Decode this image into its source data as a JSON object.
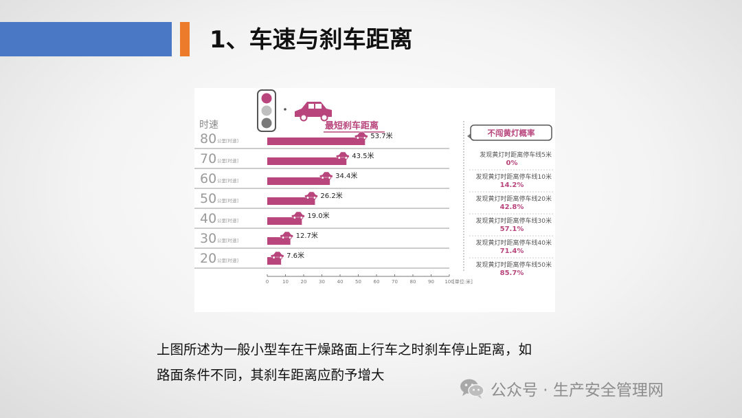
{
  "slide": {
    "title": "1、车速与刹车距离",
    "caption_line1": "上图所述为一般小型车在干燥路面上行车之时刹车停止距离，如",
    "caption_line2": "路面条件不同，其刹车距离应酌予增大"
  },
  "watermark": {
    "text": "公众号 · 生产安全管理网"
  },
  "chart_data": {
    "type": "bar",
    "title": "最短刹车距离",
    "ylabel": "时速",
    "xlabel": "[单位:米]",
    "row_unit": "公里[时速]",
    "categories": [
      "80",
      "70",
      "60",
      "50",
      "40",
      "30",
      "20"
    ],
    "values": [
      53.7,
      43.5,
      34.4,
      26.2,
      19.0,
      12.7,
      7.6
    ],
    "value_labels": [
      "53.7米",
      "43.5米",
      "34.4米",
      "26.2米",
      "19.0米",
      "12.7米",
      "7.6米"
    ],
    "xlim": [
      0,
      100
    ],
    "x_ticks": [
      0,
      10,
      20,
      30,
      40,
      50,
      60,
      70,
      80,
      90,
      100
    ],
    "bar_color": "#b8457c",
    "side_panel": {
      "title": "不闯黄灯概率",
      "items": [
        {
          "label": "发现黄灯时距离停车线5米",
          "value": "0%"
        },
        {
          "label": "发现黄灯时距离停车线10米",
          "value": "14.2%"
        },
        {
          "label": "发现黄灯时距离停车线20米",
          "value": "42.8%"
        },
        {
          "label": "发现黄灯时距离停车线30米",
          "value": "57.1%"
        },
        {
          "label": "发现黄灯时距离停车线40米",
          "value": "71.4%"
        },
        {
          "label": "发现黄灯时距离停车线50米",
          "value": "85.7%"
        }
      ]
    }
  }
}
